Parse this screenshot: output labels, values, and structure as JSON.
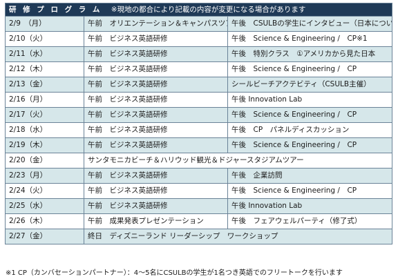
{
  "header": {
    "title": "研 修 プ ロ グ ラ ム",
    "note": "※現地の都合により記載の内容が変更になる場合があります"
  },
  "schedule": [
    {
      "date": "2/9　（月）",
      "am": "午前　オリエンテーション＆キャンパスツアー",
      "pm": "午後　CSULBの学生にインタビュー（日本について）",
      "shaded": true
    },
    {
      "date": "2/10（火）",
      "am": "午前　ビジネス英語研修",
      "pm": "午後　Science & Engineering /　CP※1",
      "shaded": false
    },
    {
      "date": "2/11（水）",
      "am": "午前　ビジネス英語研修",
      "pm": "午後　特別クラス　①アメリカから見た日本",
      "shaded": true
    },
    {
      "date": "2/12（木）",
      "am": "午前　ビジネス英語研修",
      "pm": "午後　Science & Engineering /　CP",
      "shaded": false
    },
    {
      "date": "2/13（金）",
      "am": "午前　ビジネス英語研修",
      "pm": "シールビーチアクテビティ（CSULB主催）",
      "shaded": true
    },
    {
      "date": "2/16（月）",
      "am": "午前　ビジネス英語研修",
      "pm": "午後 Innovation Lab",
      "shaded": false
    },
    {
      "date": "2/17（火）",
      "am": "午前　ビジネス英語研修",
      "pm": "午後　Science & Engineering /　CP",
      "shaded": true
    },
    {
      "date": "2/18（水）",
      "am": "午前　ビジネス英語研修",
      "pm": "午後　CP　パネルディスカッション",
      "shaded": false
    },
    {
      "date": "2/19（木）",
      "am": "午前　ビジネス英語研修",
      "pm": "午後　Science & Engineering /　CP",
      "shaded": true
    },
    {
      "date": "2/20（金）",
      "full": "サンタモニカビーチ＆ハリウッド観光＆ドジャースタジアムツアー",
      "shaded": false
    },
    {
      "date": "2/23（月）",
      "am": "午前　ビジネス英語研修",
      "pm": "午後　企業訪問",
      "shaded": true
    },
    {
      "date": "2/24（火）",
      "am": "午前　ビジネス英語研修",
      "pm": "午後　Science & Engineering /　CP",
      "shaded": false
    },
    {
      "date": "2/25（水）",
      "am": "午前　ビジネス英語研修",
      "pm": "午後 Innovation Lab",
      "shaded": true
    },
    {
      "date": "2/26（木）",
      "am": "午前　成果発表プレゼンテーション",
      "pm": "午後　フェアウェルパーティ（修了式）",
      "shaded": false
    },
    {
      "date": "2/27（金）",
      "full": "終日　ディズニーランド リーダーシップ　ワークショップ",
      "shaded": true
    }
  ],
  "footnote": "※1 CP（カンバセーションパートナー）：4～5名にCSULBの学生が1名つき英語でのフリートークを行います"
}
